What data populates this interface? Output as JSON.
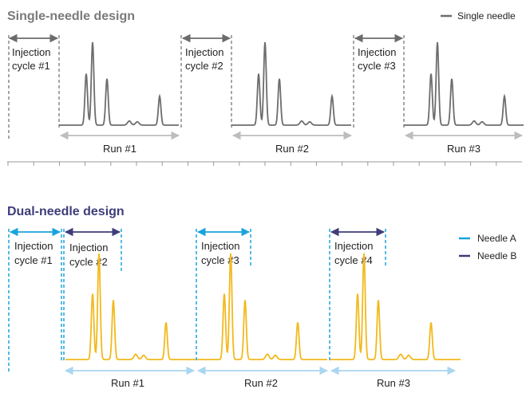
{
  "single": {
    "title": "Single-needle design",
    "title_color": "#7a7a7a",
    "legend": "Single needle",
    "trace_color": "#6d6d6d",
    "arrow_color": "#6b6b6b",
    "run_arrow_color": "#bdbdbd",
    "cycles": [
      {
        "line1": "Injection",
        "line2": "cycle #1"
      },
      {
        "line1": "Injection",
        "line2": "cycle #2"
      },
      {
        "line1": "Injection",
        "line2": "cycle #3"
      }
    ],
    "runs": [
      "Run #1",
      "Run #2",
      "Run #3"
    ]
  },
  "dual": {
    "title": "Dual-needle design",
    "title_color": "#3f3d7a",
    "legend_a": "Needle A",
    "legend_b": "Needle B",
    "needle_a_color": "#1aa3dc",
    "needle_b_color": "#3f3d7a",
    "trace_color": "#f2b91c",
    "run_arrow_color": "#a9d6f0",
    "cycles": [
      {
        "line1": "Injection",
        "line2": "cycle #1"
      },
      {
        "line1": "Injection",
        "line2": "cycle #2"
      },
      {
        "line1": "Injection",
        "line2": "cycle #3"
      },
      {
        "line1": "Injection",
        "line2": "cycle #4"
      }
    ],
    "runs": [
      "Run #1",
      "Run #2",
      "Run #3"
    ]
  }
}
